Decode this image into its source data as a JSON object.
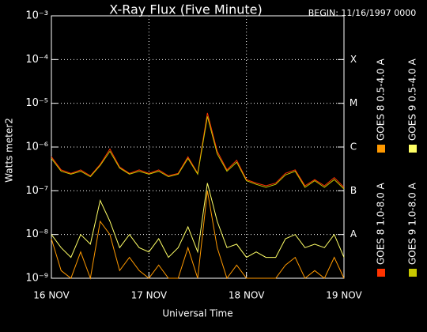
{
  "chart_data": {
    "type": "line",
    "title": "X-Ray Flux (Five Minute)",
    "subtitle": "BEGIN: 11/16/1997 0000",
    "x_label": "Universal Time",
    "y_label": "Watts meter2",
    "x": [
      0,
      0.1,
      0.2,
      0.3,
      0.4,
      0.5,
      0.6,
      0.7,
      0.8,
      0.9,
      1.0,
      1.1,
      1.2,
      1.3,
      1.4,
      1.5,
      1.6,
      1.7,
      1.8,
      1.9,
      2.0,
      2.1,
      2.2,
      2.3,
      2.4,
      2.5,
      2.6,
      2.7,
      2.8,
      2.9,
      3.0
    ],
    "xlim": [
      0,
      3
    ],
    "xticks": [
      {
        "value": 0,
        "label": "16 NOV"
      },
      {
        "value": 1,
        "label": "17 NOV"
      },
      {
        "value": 2,
        "label": "18 NOV"
      },
      {
        "value": 3,
        "label": "19 NOV"
      }
    ],
    "log_scale": true,
    "ylim": [
      1e-09,
      0.001
    ],
    "yticks": [
      {
        "value": 1e-09,
        "label": "10⁻⁹"
      },
      {
        "value": 1e-08,
        "label": "10⁻⁸"
      },
      {
        "value": 1e-07,
        "label": "10⁻⁷"
      },
      {
        "value": 1e-06,
        "label": "10⁻⁶"
      },
      {
        "value": 1e-05,
        "label": "10⁻⁵"
      },
      {
        "value": 0.0001,
        "label": "10⁻⁴"
      },
      {
        "value": 0.001,
        "label": "10⁻³"
      }
    ],
    "y2lim": [
      1e-09,
      0.001
    ],
    "y2ticks": [
      {
        "value": 1e-08,
        "label": "A"
      },
      {
        "value": 1e-07,
        "label": "B"
      },
      {
        "value": 1e-06,
        "label": "C"
      },
      {
        "value": 1e-05,
        "label": "M"
      },
      {
        "value": 0.0001,
        "label": "X"
      }
    ],
    "grid": true,
    "legend": "right",
    "series": [
      {
        "name": "GOES 8 1.0-8.0 A",
        "color": "#ff3300",
        "values": [
          6e-07,
          3e-07,
          2.5e-07,
          3e-07,
          2.2e-07,
          4e-07,
          9e-07,
          3.5e-07,
          2.5e-07,
          3e-07,
          2.5e-07,
          3e-07,
          2.2e-07,
          2.5e-07,
          6e-07,
          2.5e-07,
          6e-06,
          8e-07,
          3e-07,
          5e-07,
          1.8e-07,
          1.5e-07,
          1.3e-07,
          1.5e-07,
          2.5e-07,
          3e-07,
          1.3e-07,
          1.8e-07,
          1.3e-07,
          2e-07,
          1.2e-07
        ]
      },
      {
        "name": "GOES 8 0.5-4.0 A",
        "color": "#ff9900",
        "values": [
          8e-09,
          1.5e-09,
          1e-09,
          4e-09,
          1e-09,
          2e-08,
          1e-08,
          1.5e-09,
          3e-09,
          1.5e-09,
          1e-09,
          2e-09,
          1e-09,
          1e-09,
          5e-09,
          1e-09,
          1e-07,
          5e-09,
          1e-09,
          2e-09,
          1e-09,
          1e-09,
          1e-09,
          1e-09,
          2e-09,
          3e-09,
          1e-09,
          1.5e-09,
          1e-09,
          3e-09,
          1e-09
        ]
      },
      {
        "name": "GOES 9 1.0-8.0 A",
        "color": "#c8c800",
        "values": [
          5.5e-07,
          2.8e-07,
          2.4e-07,
          2.8e-07,
          2.1e-07,
          3.8e-07,
          8e-07,
          3.3e-07,
          2.4e-07,
          2.8e-07,
          2.4e-07,
          2.8e-07,
          2.1e-07,
          2.4e-07,
          5.5e-07,
          2.4e-07,
          5e-06,
          7e-07,
          2.8e-07,
          4.5e-07,
          1.7e-07,
          1.4e-07,
          1.2e-07,
          1.4e-07,
          2.3e-07,
          2.8e-07,
          1.2e-07,
          1.7e-07,
          1.2e-07,
          1.8e-07,
          1.1e-07
        ]
      },
      {
        "name": "GOES 9 0.5-4.0 A",
        "color": "#ffff66",
        "values": [
          1e-08,
          5e-09,
          3e-09,
          1e-08,
          6e-09,
          6e-08,
          2e-08,
          5e-09,
          1e-08,
          5e-09,
          4e-09,
          8e-09,
          3e-09,
          5e-09,
          1.5e-08,
          4e-09,
          1.5e-07,
          2e-08,
          5e-09,
          6e-09,
          3e-09,
          4e-09,
          3e-09,
          3e-09,
          8e-09,
          1e-08,
          5e-09,
          6e-09,
          5e-09,
          1e-08,
          3e-09
        ]
      }
    ]
  }
}
